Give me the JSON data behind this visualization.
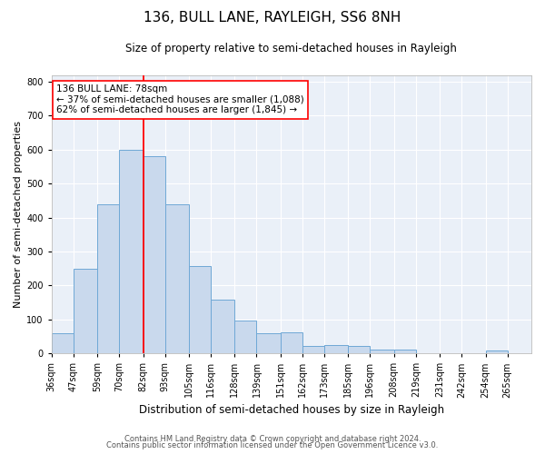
{
  "title": "136, BULL LANE, RAYLEIGH, SS6 8NH",
  "subtitle": "Size of property relative to semi-detached houses in Rayleigh",
  "xlabel": "Distribution of semi-detached houses by size in Rayleigh",
  "ylabel": "Number of semi-detached properties",
  "categories": [
    "36sqm",
    "47sqm",
    "59sqm",
    "70sqm",
    "82sqm",
    "93sqm",
    "105sqm",
    "116sqm",
    "128sqm",
    "139sqm",
    "151sqm",
    "162sqm",
    "173sqm",
    "185sqm",
    "196sqm",
    "208sqm",
    "219sqm",
    "231sqm",
    "242sqm",
    "254sqm",
    "265sqm"
  ],
  "values": [
    60,
    250,
    440,
    600,
    580,
    440,
    258,
    158,
    98,
    60,
    62,
    22,
    25,
    23,
    10,
    10,
    0,
    0,
    0,
    8,
    0
  ],
  "bar_color": "#c9d9ed",
  "bar_edge_color": "#6fa8d6",
  "subject_line_color": "red",
  "annotation_title": "136 BULL LANE: 78sqm",
  "annotation_line1": "← 37% of semi-detached houses are smaller (1,088)",
  "annotation_line2": "62% of semi-detached houses are larger (1,845) →",
  "annotation_box_color": "white",
  "annotation_box_edge": "red",
  "footer1": "Contains HM Land Registry data © Crown copyright and database right 2024.",
  "footer2": "Contains public sector information licensed under the Open Government Licence v3.0.",
  "ylim": [
    0,
    820
  ],
  "yticks": [
    0,
    100,
    200,
    300,
    400,
    500,
    600,
    700,
    800
  ],
  "bin_edges": [
    30,
    41,
    53,
    64,
    76,
    87,
    99,
    110,
    122,
    133,
    145,
    156,
    167,
    179,
    190,
    202,
    213,
    225,
    236,
    248,
    259,
    271
  ],
  "subject_bin_index": 3,
  "bg_color": "#eaf0f8",
  "grid_color": "#ffffff",
  "title_fontsize": 11,
  "subtitle_fontsize": 8.5,
  "ylabel_fontsize": 8,
  "xlabel_fontsize": 8.5,
  "tick_fontsize": 7,
  "ann_fontsize": 7.5,
  "footer_fontsize": 6
}
